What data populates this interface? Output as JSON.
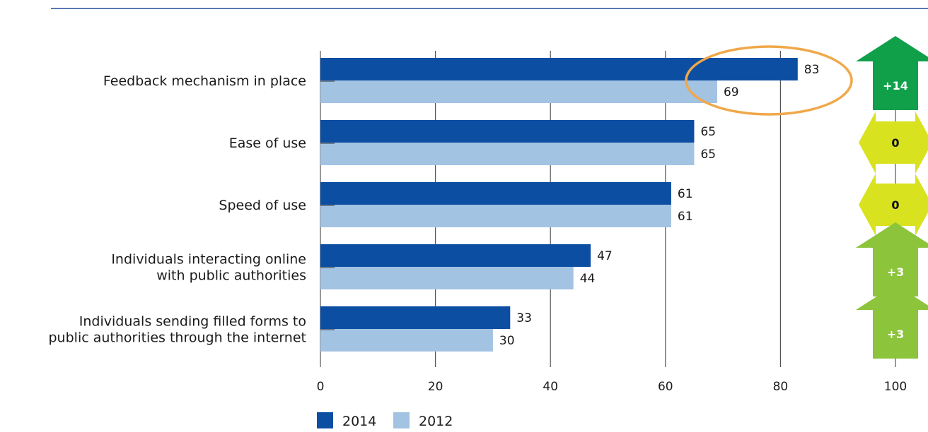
{
  "chart_data": {
    "type": "bar",
    "orientation": "horizontal",
    "categories": [
      [
        "Feedback mechanism in place"
      ],
      [
        "Ease of use"
      ],
      [
        "Speed of use"
      ],
      [
        "Individuals interacting online",
        "with public authorities"
      ],
      [
        "Individuals sending filled forms to",
        "public authorities through the internet"
      ]
    ],
    "series": [
      {
        "name": "2014",
        "color": "#0b4ea2",
        "values": [
          83,
          65,
          61,
          47,
          33
        ]
      },
      {
        "name": "2012",
        "color": "#a3c3e3",
        "values": [
          69,
          65,
          61,
          44,
          30
        ]
      }
    ],
    "xlim": [
      0,
      100
    ],
    "xticks": [
      "0",
      "20",
      "40",
      "60",
      "80",
      "100"
    ],
    "grid": true,
    "legend_position": "bottom-left",
    "changes": [
      {
        "label": "+14",
        "direction": "up",
        "color": "#10a04a",
        "text_color": "#ffffff"
      },
      {
        "label": "0",
        "direction": "both",
        "color": "#d8e21f",
        "text_color": "#111111"
      },
      {
        "label": "0",
        "direction": "both",
        "color": "#d8e21f",
        "text_color": "#111111"
      },
      {
        "label": "+3",
        "direction": "up",
        "color": "#8cc43c",
        "text_color": "#ffffff"
      },
      {
        "label": "+3",
        "direction": "up",
        "color": "#8cc43c",
        "text_color": "#ffffff"
      }
    ],
    "highlight": {
      "category_index": 0,
      "color": "#f0a84a"
    },
    "accent_rule_color": "#1f4e9a"
  }
}
